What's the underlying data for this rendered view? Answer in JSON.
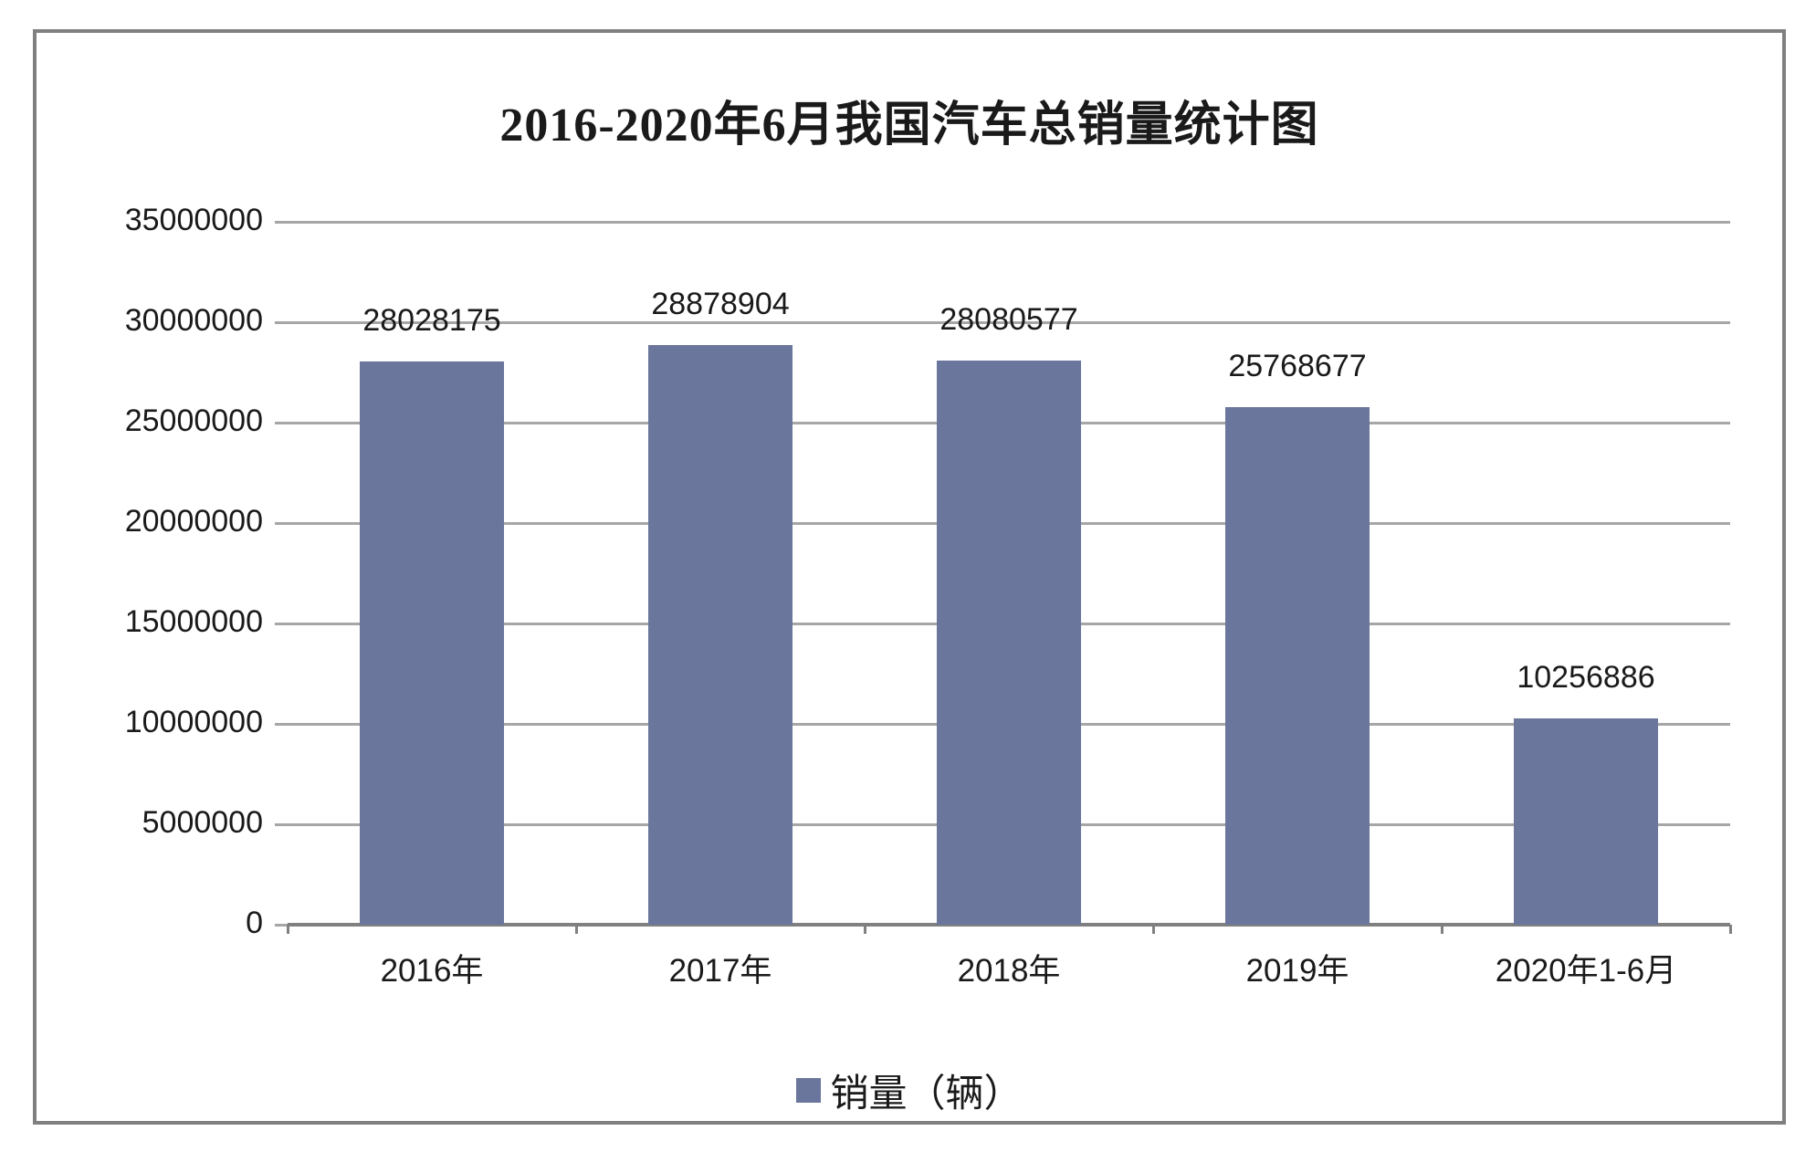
{
  "chart_data": {
    "type": "bar",
    "title": "2016-2020年6月我国汽车总销量统计图",
    "categories": [
      "2016年",
      "2017年",
      "2018年",
      "2019年",
      "2020年1-6月"
    ],
    "series": [
      {
        "name": "销量（辆）",
        "values": [
          28028175,
          28878904,
          28080577,
          25768677,
          10256886
        ]
      }
    ],
    "data_labels": [
      "28028175",
      "28878904",
      "28080577",
      "25768677",
      "10256886"
    ],
    "y_ticks": [
      0,
      5000000,
      10000000,
      15000000,
      20000000,
      25000000,
      30000000,
      35000000
    ],
    "y_tick_labels": [
      "0",
      "5000000",
      "10000000",
      "15000000",
      "20000000",
      "25000000",
      "30000000",
      "35000000"
    ],
    "ylim": [
      0,
      35000000
    ],
    "xlabel": "",
    "ylabel": "",
    "grid": true,
    "legend_position": "bottom",
    "legend_label": "销量（辆）",
    "colors": {
      "bar": "#6A769C",
      "gridline": "#A6A6A6",
      "axis": "#808080",
      "frame_border": "#808080",
      "text": "#1a1a1a",
      "background": "#ffffff"
    }
  }
}
